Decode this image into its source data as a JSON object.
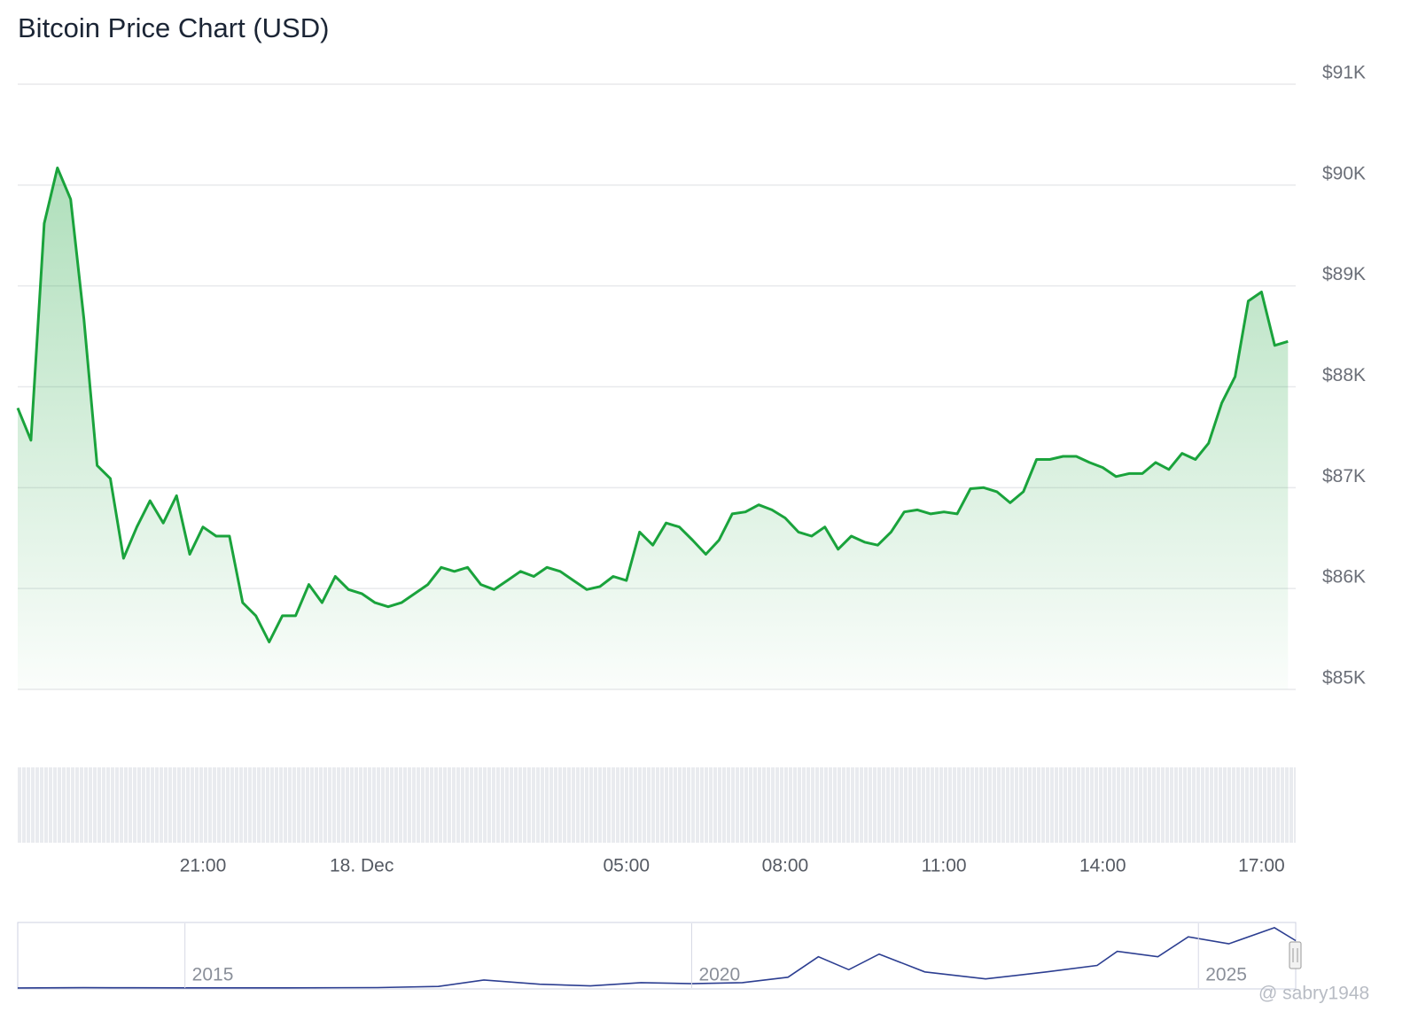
{
  "chart_data": [
    {
      "type": "line",
      "title": "Bitcoin Price Chart (USD)",
      "categories": [
        null,
        null,
        null,
        null,
        null,
        null,
        null,
        null,
        null,
        null,
        null,
        null,
        null,
        null,
        "21:00",
        null,
        null,
        null,
        null,
        null,
        null,
        null,
        null,
        null,
        null,
        null,
        "18. Dec",
        null,
        null,
        null,
        null,
        null,
        null,
        null,
        null,
        null,
        null,
        null,
        null,
        null,
        null,
        null,
        null,
        null,
        null,
        null,
        "05:00",
        null,
        null,
        null,
        null,
        null,
        null,
        null,
        null,
        null,
        null,
        null,
        "08:00",
        null,
        null,
        null,
        null,
        null,
        null,
        null,
        null,
        null,
        null,
        null,
        "11:00",
        null,
        null,
        null,
        null,
        null,
        null,
        null,
        null,
        null,
        null,
        null,
        "14:00",
        null,
        null,
        null,
        null,
        null,
        null,
        null,
        null,
        null,
        null,
        null,
        "17:00",
        null,
        null
      ],
      "values": [
        87790,
        87470,
        89620,
        90170,
        89860,
        88670,
        87220,
        87090,
        86300,
        86610,
        86870,
        86650,
        86920,
        86340,
        86610,
        86520,
        86520,
        85860,
        85730,
        85470,
        85730,
        85730,
        86040,
        85860,
        86120,
        85990,
        85950,
        85860,
        85820,
        85860,
        85950,
        86040,
        86210,
        86170,
        86210,
        86040,
        85990,
        86080,
        86170,
        86120,
        86210,
        86170,
        86080,
        85990,
        86020,
        86120,
        86080,
        86560,
        86430,
        86650,
        86610,
        86480,
        86340,
        86480,
        86740,
        86760,
        86830,
        86780,
        86700,
        86560,
        86520,
        86610,
        86390,
        86520,
        86460,
        86430,
        86560,
        86760,
        86780,
        86740,
        86760,
        86740,
        86990,
        87000,
        86960,
        86850,
        86960,
        87280,
        87280,
        87310,
        87310,
        87250,
        87200,
        87110,
        87140,
        87140,
        87250,
        87180,
        87340,
        87280,
        87440,
        87840,
        88100,
        88850,
        88940,
        88410,
        88450
      ],
      "color": "#1aa33c",
      "ylim": [
        85000,
        91000
      ],
      "yticks": [
        {
          "value": 85000,
          "label": "$85K"
        },
        {
          "value": 86000,
          "label": "$86K"
        },
        {
          "value": 87000,
          "label": "$87K"
        },
        {
          "value": 88000,
          "label": "$88K"
        },
        {
          "value": 89000,
          "label": "$89K"
        },
        {
          "value": 90000,
          "label": "$90K"
        },
        {
          "value": 91000,
          "label": "$91K"
        }
      ],
      "grid": true,
      "watermark": "@ sabry1948"
    },
    {
      "type": "line",
      "x": [
        2013.35,
        2014,
        2014.5,
        2015,
        2016,
        2016.9,
        2017.5,
        2017.95,
        2018.5,
        2019,
        2019.5,
        2020,
        2020.5,
        2020.95,
        2021.25,
        2021.55,
        2021.85,
        2022.3,
        2022.9,
        2023.5,
        2024,
        2024.2,
        2024.6,
        2024.9,
        2025.3,
        2025.75,
        2025.96
      ],
      "values": [
        100,
        600,
        500,
        250,
        400,
        900,
        3000,
        15000,
        7000,
        4000,
        10000,
        8000,
        10000,
        20000,
        58000,
        34000,
        63000,
        30000,
        17000,
        30000,
        42000,
        68000,
        58000,
        95000,
        82000,
        112000,
        88000
      ],
      "color": "#2c3e91",
      "xlim": [
        2013.35,
        2025.96
      ],
      "ylim": [
        0,
        120000
      ],
      "xticks": [
        2015,
        2020,
        2025
      ]
    }
  ]
}
